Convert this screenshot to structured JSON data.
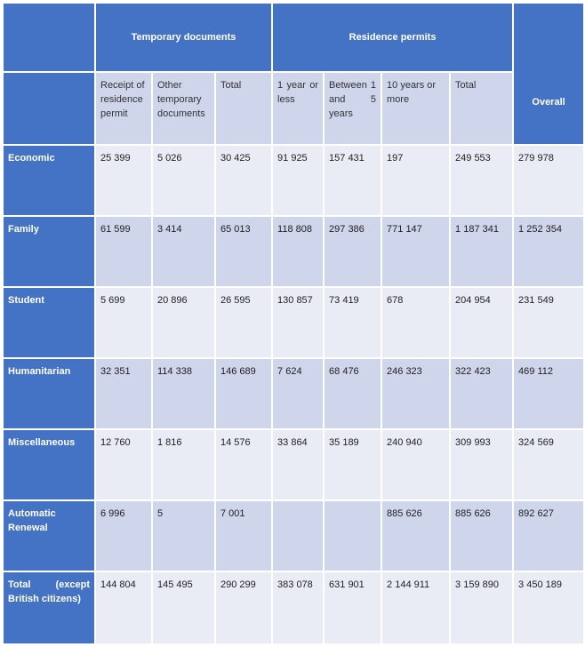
{
  "header": {
    "temporary_documents": "Temporary documents",
    "residence_permits": "Residence permits",
    "overall": "Overall"
  },
  "subheaders": [
    "Receipt of residence permit",
    "Other temporary documents",
    "Total",
    "1 year or less",
    "Between 1 and 5 years",
    "10 years or more",
    "Total"
  ],
  "rows": [
    {
      "label": "Economic",
      "values": [
        "25 399",
        "5 026",
        "30 425",
        "91 925",
        "157 431",
        "197",
        "249 553",
        "279 978"
      ]
    },
    {
      "label": "Family",
      "values": [
        "61 599",
        "3 414",
        "65 013",
        "118 808",
        "297 386",
        "771 147",
        "1 187 341",
        "1 252 354"
      ]
    },
    {
      "label": "Student",
      "values": [
        "5 699",
        "20 896",
        "26 595",
        "130 857",
        "73 419",
        "678",
        "204 954",
        "231 549"
      ]
    },
    {
      "label": "Humanitarian",
      "values": [
        "32 351",
        "114 338",
        "146 689",
        "7 624",
        "68 476",
        "246 323",
        "322 423",
        "469 112"
      ]
    },
    {
      "label": "Miscellaneous",
      "values": [
        "12 760",
        "1 816",
        "14 576",
        "33 864",
        "35 189",
        "240 940",
        "309 993",
        "324 569"
      ]
    },
    {
      "label": "Automatic Renewal",
      "values": [
        "6 996",
        "5",
        "7 001",
        "",
        "",
        "885 626",
        "885 626",
        "892 627"
      ]
    },
    {
      "label": "Total (except British citizens)",
      "values": [
        "144 804",
        "145 495",
        "290 299",
        "383 078",
        "631 901",
        "2 144 911",
        "3 159 890",
        "3 450 189"
      ]
    }
  ],
  "colors": {
    "header_blue": "#4472c4",
    "light_band": "#e9ebf5",
    "dark_band": "#cfd5ea"
  }
}
